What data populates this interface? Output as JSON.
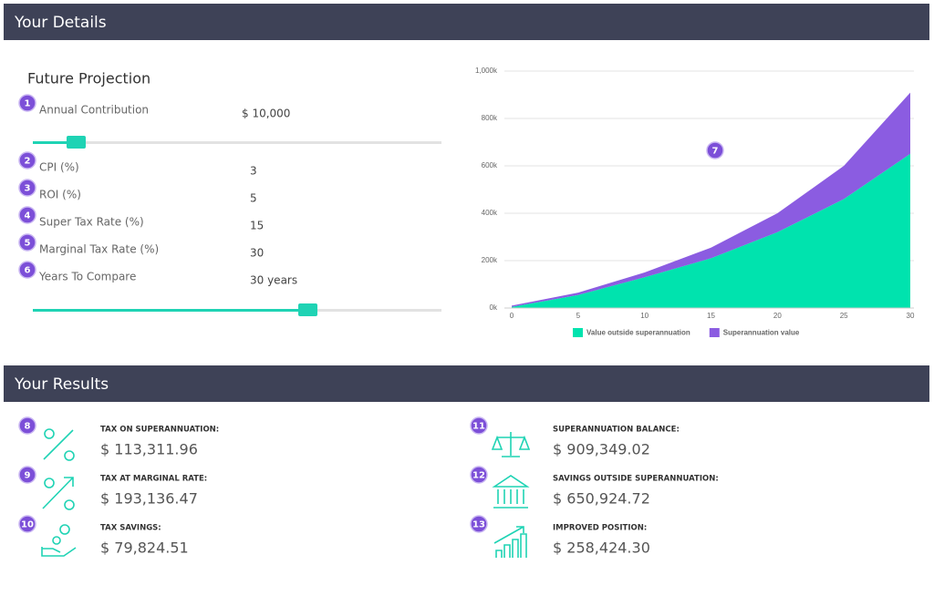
{
  "details": {
    "title": "Your Details",
    "subtitle": "Future Projection",
    "fields": [
      {
        "marker": "1",
        "label": "Annual Contribution",
        "value": "$ 10,000"
      },
      {
        "marker": "2",
        "label": "CPI (%)",
        "value": "3"
      },
      {
        "marker": "3",
        "label": "ROI (%)",
        "value": "5"
      },
      {
        "marker": "4",
        "label": "Super Tax Rate (%)",
        "value": "15"
      },
      {
        "marker": "5",
        "label": "Marginal Tax Rate (%)",
        "value": "30"
      },
      {
        "marker": "6",
        "label": "Years To Compare",
        "value": "30 years"
      }
    ],
    "chart_marker": "7"
  },
  "chart_data": {
    "type": "area",
    "stacked": true,
    "x": [
      0,
      5,
      10,
      15,
      20,
      25,
      30
    ],
    "series": [
      {
        "name": "Value outside superannuation",
        "color": "#00e3ae",
        "values": [
          5000,
          55000,
          130000,
          210000,
          320000,
          460000,
          650925
        ]
      },
      {
        "name": "Superannuation value",
        "color": "#8b5ce1",
        "values": [
          5000,
          10000,
          20000,
          45000,
          80000,
          140000,
          258424
        ]
      }
    ],
    "xlim": [
      0,
      30
    ],
    "xticks": [
      0,
      5,
      10,
      15,
      20,
      25,
      30
    ],
    "ylim": [
      0,
      1000000
    ],
    "yticks": [
      {
        "value": 0,
        "label": "0k"
      },
      {
        "value": 200000,
        "label": "200k"
      },
      {
        "value": 400000,
        "label": "400k"
      },
      {
        "value": 600000,
        "label": "600k"
      },
      {
        "value": 800000,
        "label": "800k"
      },
      {
        "value": 1000000,
        "label": "1,000k"
      }
    ],
    "grid": true,
    "legend": "bottom"
  },
  "results": {
    "title": "Your Results",
    "items": [
      {
        "marker": "8",
        "label": "TAX ON SUPERANNUATION:",
        "value": "$ 113,311.96"
      },
      {
        "marker": "9",
        "label": "TAX AT MARGINAL RATE:",
        "value": "$ 193,136.47"
      },
      {
        "marker": "10",
        "label": "TAX SAVINGS:",
        "value": "$ 79,824.51"
      },
      {
        "marker": "11",
        "label": "SUPERANNUATION BALANCE:",
        "value": "$ 909,349.02"
      },
      {
        "marker": "12",
        "label": "SAVINGS OUTSIDE SUPERANNUATION:",
        "value": "$ 650,924.72"
      },
      {
        "marker": "13",
        "label": "IMPROVED POSITION:",
        "value": "$ 258,424.30"
      }
    ]
  }
}
